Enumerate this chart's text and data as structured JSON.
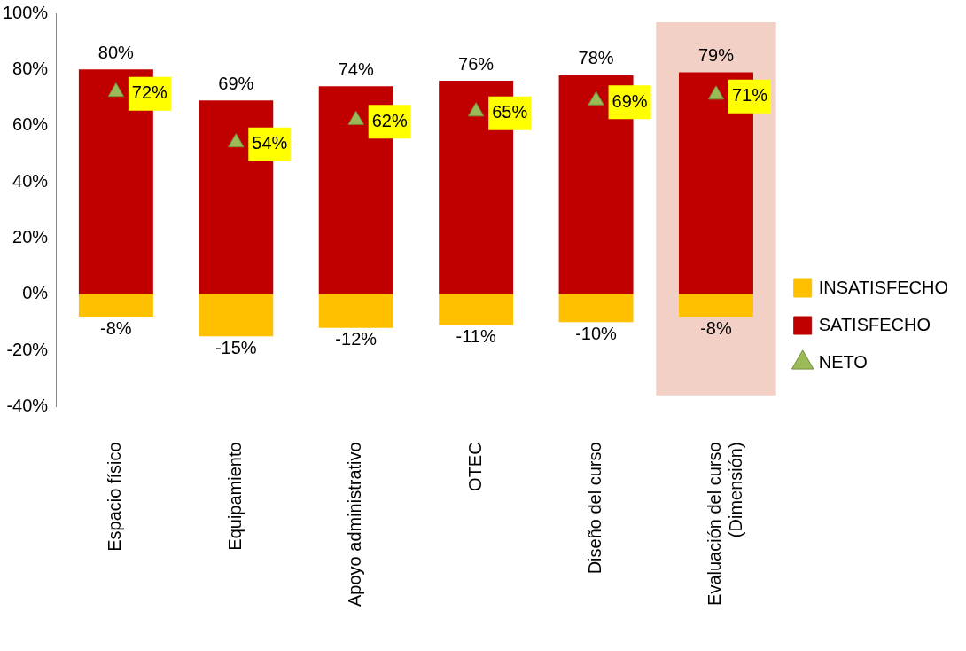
{
  "chart_data": {
    "type": "bar",
    "stacked": true,
    "categories": [
      "Espacio físico",
      "Equipamiento",
      "Apoyo administrativo",
      "OTEC",
      "Diseño del curso",
      "Evaluación del curso\n(Dimensión)"
    ],
    "series": [
      {
        "name": "INSATISFECHO",
        "color": "#ffc000",
        "values": [
          -8,
          -15,
          -12,
          -11,
          -10,
          -8
        ],
        "value_labels": [
          "-8%",
          "-15%",
          "-12%",
          "-11%",
          "-10%",
          "-8%"
        ]
      },
      {
        "name": "SATISFECHO",
        "color": "#c00000",
        "values": [
          80,
          69,
          74,
          76,
          78,
          79
        ],
        "value_labels": [
          "80%",
          "69%",
          "74%",
          "76%",
          "78%",
          "79%"
        ]
      },
      {
        "name": "NETO",
        "type": "scatter",
        "color": "#9bbb59",
        "marker": "triangle",
        "values": [
          72,
          54,
          62,
          65,
          69,
          71
        ],
        "value_labels": [
          "72%",
          "54%",
          "62%",
          "65%",
          "69%",
          "71%"
        ]
      }
    ],
    "ylim": [
      -40,
      100
    ],
    "yticks": [
      {
        "value": -40,
        "label": "-40%"
      },
      {
        "value": -20,
        "label": "-20%"
      },
      {
        "value": 0,
        "label": "0%"
      },
      {
        "value": 20,
        "label": "20%"
      },
      {
        "value": 40,
        "label": "40%"
      },
      {
        "value": 60,
        "label": "60%"
      },
      {
        "value": 80,
        "label": "80%"
      },
      {
        "value": 100,
        "label": "100%"
      }
    ],
    "bands": [
      {
        "axis": "x",
        "from": "Evaluación del curso\n(Dimensión)",
        "to": "Evaluación del curso\n(Dimensión)",
        "color": "#f2d0c6"
      }
    ],
    "grid": false,
    "legend": "right"
  }
}
